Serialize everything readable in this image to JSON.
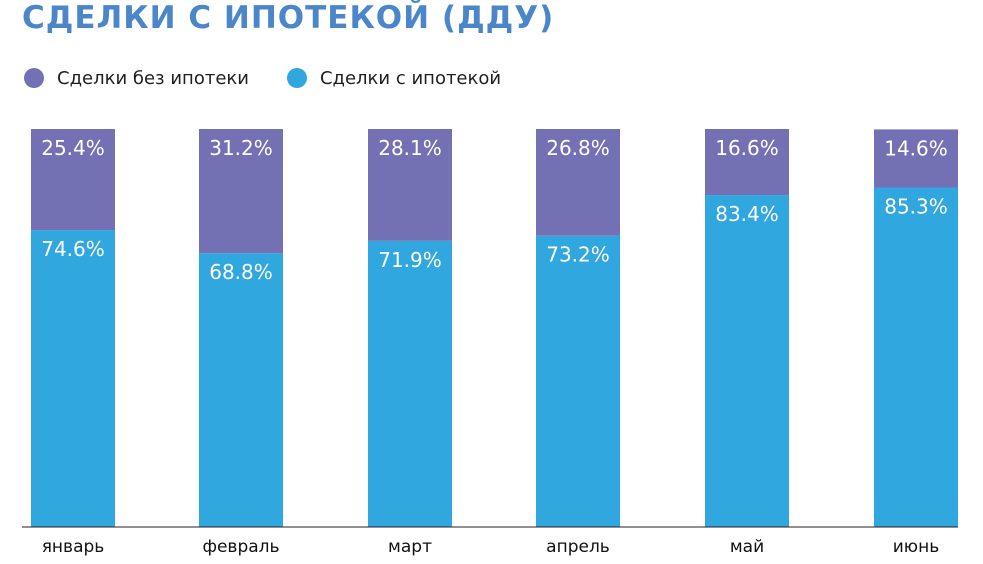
{
  "title": "СДЕЛКИ С ИПОТЕКОЙ (ДДУ)",
  "colors": {
    "title": "#4a86c9",
    "without_mortgage": "#7470b4",
    "with_mortgage": "#31a7e0",
    "axis": "#222222",
    "bar_label": "#ffffff"
  },
  "legend": [
    {
      "label": "Сделки без ипотеки",
      "color": "#7470b4"
    },
    {
      "label": "Сделки с ипотекой",
      "color": "#31a7e0"
    }
  ],
  "chart_data": {
    "type": "bar",
    "stacked": true,
    "title": "СДЕЛКИ С ИПОТЕКОЙ (ДДУ)",
    "categories": [
      "январь",
      "февраль",
      "март",
      "апрель",
      "май",
      "июнь"
    ],
    "series": [
      {
        "name": "Сделки с ипотекой",
        "values": [
          74.6,
          68.8,
          71.9,
          73.2,
          83.4,
          85.3
        ],
        "labels": [
          "74.6%",
          "68.8%",
          "71.9%",
          "73.2%",
          "83.4%",
          "85.3%"
        ]
      },
      {
        "name": "Сделки без ипотеки",
        "values": [
          25.4,
          31.2,
          28.1,
          26.8,
          16.6,
          14.6
        ],
        "labels": [
          "25.4%",
          "31.2%",
          "28.1%",
          "26.8%",
          "16.6%",
          "14.6%"
        ]
      }
    ],
    "ylim": [
      0,
      100
    ],
    "grid": false,
    "legend_position": "top-left"
  }
}
